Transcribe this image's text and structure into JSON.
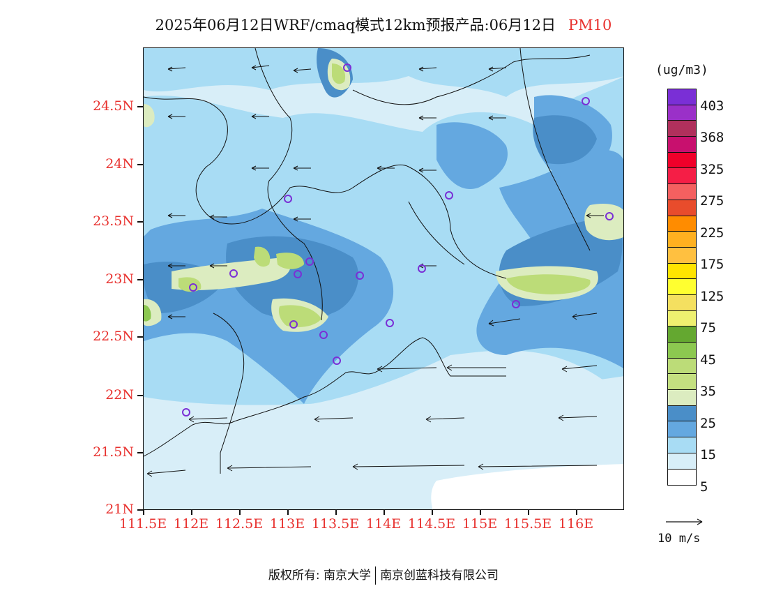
{
  "title": {
    "text": "2025年06月12日WRF/cmaq模式12km预报产品:06月12日",
    "variable": "PM10"
  },
  "y_axis_labels": [
    "24.5N",
    "24N",
    "23.5N",
    "23N",
    "22.5N",
    "22N",
    "21.5N",
    "21N"
  ],
  "x_axis_labels": [
    "111.5E",
    "112E",
    "112.5E",
    "113E",
    "113.5E",
    "114E",
    "114.5E",
    "115E",
    "115.5E",
    "116E"
  ],
  "colorbar": {
    "unit": "(ug/m3)",
    "colors": [
      "#7a2fd6",
      "#9a30c8",
      "#b0305c",
      "#c8106e",
      "#f0002a",
      "#f51e46",
      "#f46060",
      "#e84c2c",
      "#ff8c00",
      "#ffb020",
      "#ffc040",
      "#ffe400",
      "#ffff30",
      "#f4e060",
      "#eef070",
      "#64a830",
      "#8cc850",
      "#bcdc78",
      "#c4e080",
      "#dcecc0",
      "#4a8ec8",
      "#64a8e0",
      "#a8dcf4",
      "#d8eef8",
      "#ffffff"
    ],
    "labels": [
      "403",
      "368",
      "325",
      "275",
      "225",
      "175",
      "125",
      "75",
      "45",
      "35",
      "25",
      "15",
      "5"
    ]
  },
  "wind_reference": {
    "label": "10 m/s"
  },
  "stations_label": "monitoring-stations",
  "footer": {
    "left": "版权所有: 南京大学",
    "right": "南京创蓝科技有限公司"
  }
}
